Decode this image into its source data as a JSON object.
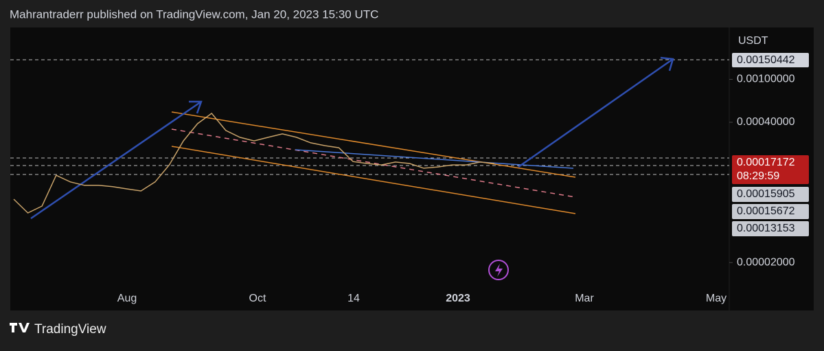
{
  "header": {
    "title": "Mahrantraderr published on TradingView.com, Jan 20, 2023 15:30 UTC"
  },
  "chart": {
    "currency": "USDT",
    "log_scale": true,
    "price_ticks": [
      0.001,
      0.0004,
      2e-05
    ],
    "price_tick_labels": [
      "0.00100000",
      "0.00040000",
      "0.00002000"
    ],
    "target_label": "0.00150442",
    "last_price_label": "0.00017172",
    "countdown": "08:29:59",
    "level_labels": [
      "0.00015905",
      "0.00015672",
      "0.00013153"
    ],
    "time_labels": [
      "Aug",
      "Oct",
      "14",
      "2023",
      "Mar",
      "May"
    ],
    "close": [
      7.74e-05,
      5.77e-05,
      6.68e-05,
      0.000129,
      0.000112,
      0.000104,
      0.000104,
      0.000101,
      9.64e-05,
      9.23e-05,
      0.000112,
      0.000161,
      0.000269,
      0.000388,
      0.000484,
      0.000336,
      0.00029,
      0.000269,
      0.00029,
      0.000312,
      0.00029,
      0.000258,
      0.000243,
      0.000232,
      0.000173,
      0.000166,
      0.000161,
      0.000171,
      0.000166,
      0.00015,
      0.000154,
      0.000161,
      0.000161,
      0.000171,
      0.000166
    ]
  },
  "footer": {
    "brand": "TradingView"
  }
}
